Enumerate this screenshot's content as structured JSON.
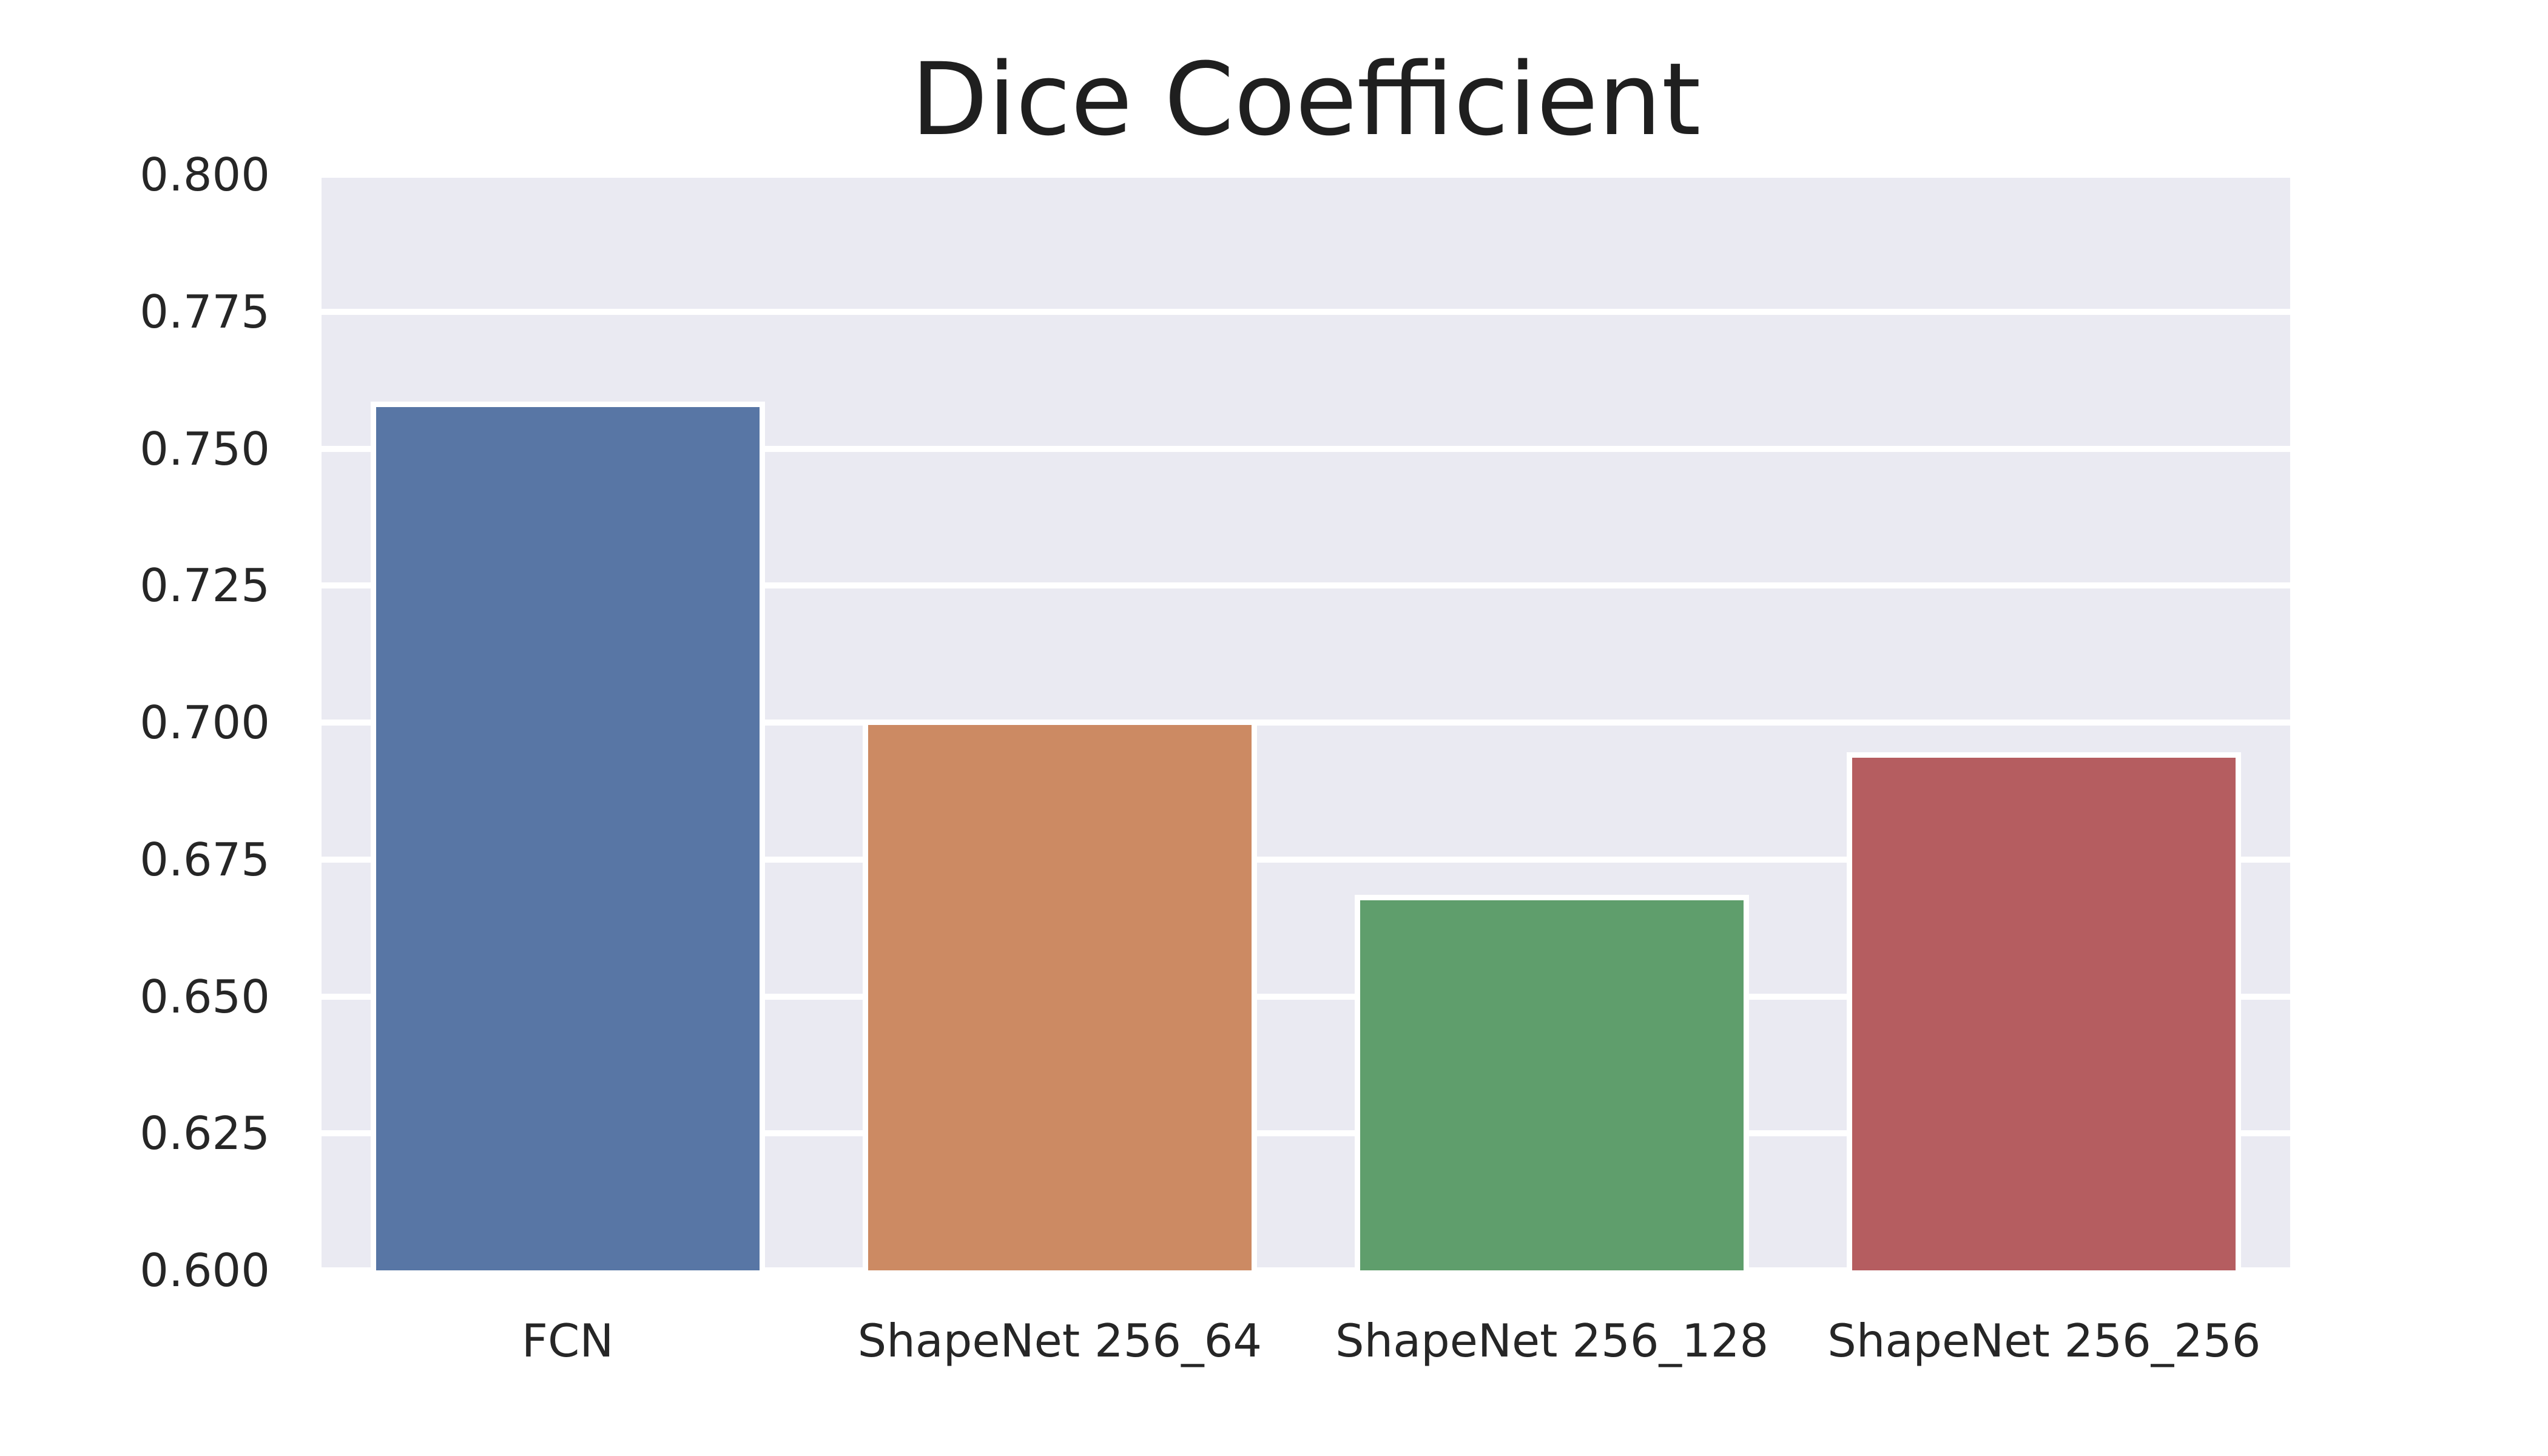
{
  "chart_data": {
    "type": "bar",
    "title": "Dice Coefficient",
    "categories": [
      "FCN",
      "ShapeNet 256_64",
      "ShapeNet 256_128",
      "ShapeNet 256_256"
    ],
    "values": [
      0.758,
      0.7,
      0.668,
      0.694
    ],
    "bar_colors": [
      "#5876a5",
      "#cc8a63",
      "#5f9e6c",
      "#b55d60"
    ],
    "xlabel": "",
    "ylabel": "",
    "ylim": [
      0.6,
      0.8
    ],
    "ytick_step": 0.025,
    "ytick_labels": [
      "0.800",
      "0.775",
      "0.750",
      "0.725",
      "0.700",
      "0.675",
      "0.650",
      "0.625",
      "0.600"
    ],
    "grid": true,
    "legend": false,
    "style": {
      "plot_background": "#eaeaf2",
      "grid_color": "#ffffff",
      "bar_edge_color": "#ffffff",
      "text_color": "#262626",
      "title_color": "#1f1f1f",
      "figure_background": "#ffffff"
    }
  }
}
